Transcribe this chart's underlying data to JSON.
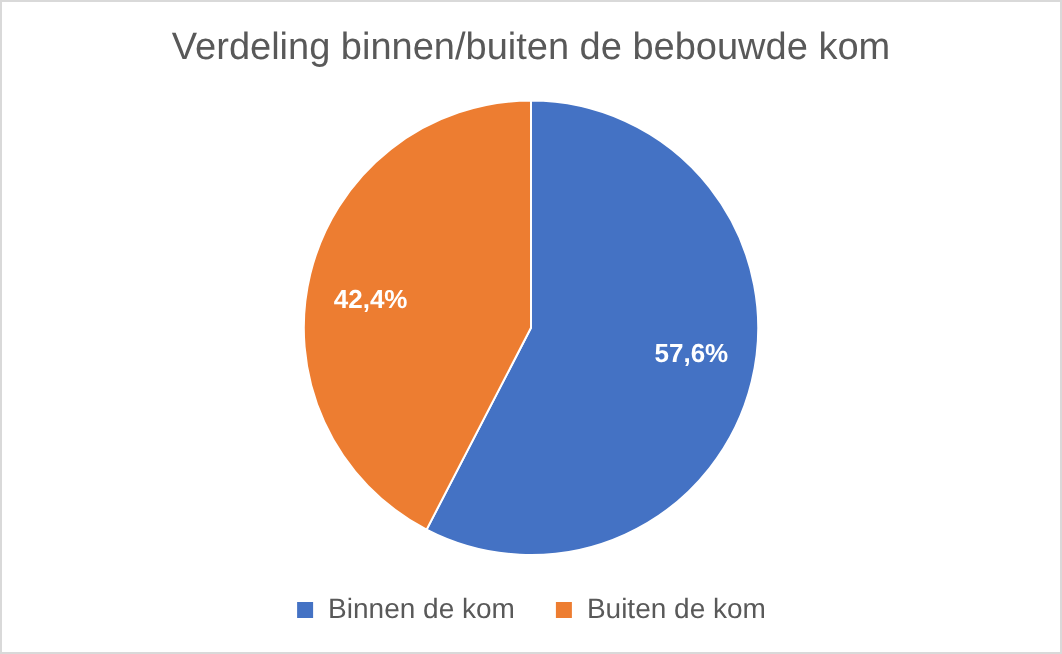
{
  "chart_data": {
    "type": "pie",
    "title": "Verdeling binnen/buiten de bebouwde kom",
    "categories": [
      "Binnen de kom",
      "Buiten de kom"
    ],
    "values": [
      57.6,
      42.4
    ],
    "colors": [
      "#4472c4",
      "#ed7d31"
    ],
    "value_labels": [
      "57,6%",
      "42,4%"
    ],
    "legend": "bottom"
  }
}
